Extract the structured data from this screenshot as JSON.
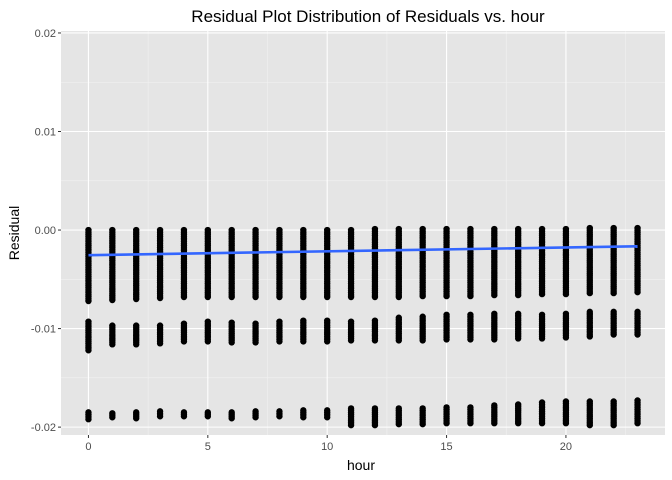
{
  "chart_data": {
    "type": "scatter",
    "title": "Residual Plot Distribution of Residuals vs. hour",
    "xlabel": "hour",
    "ylabel": "Residual",
    "xlim": [
      -1.15,
      24.15
    ],
    "ylim": [
      -0.0208,
      0.0202
    ],
    "x_ticks": [
      0,
      5,
      10,
      15,
      20
    ],
    "x_tick_labels": [
      "0",
      "5",
      "10",
      "15",
      "20"
    ],
    "y_ticks": [
      -0.02,
      -0.01,
      0.0,
      0.01,
      0.02
    ],
    "y_tick_labels": [
      "-0.02",
      "-0.01",
      "0.00",
      "0.01",
      "0.02"
    ],
    "grid": true,
    "legend": "none",
    "colors": {
      "panel": "#e5e5e5",
      "grid_major": "#ffffff",
      "grid_minor": "#f2f2f2",
      "point": "#000000",
      "trend": "#3366ff"
    },
    "point_bands": [
      {
        "name": "main",
        "x": [
          0,
          1,
          2,
          3,
          4,
          5,
          6,
          7,
          8,
          9,
          10,
          11,
          12,
          13,
          14,
          15,
          16,
          17,
          18,
          19,
          20,
          21,
          22,
          23
        ],
        "y_low": [
          -0.0072,
          -0.0071,
          -0.007,
          -0.0069,
          -0.0068,
          -0.0068,
          -0.0068,
          -0.0068,
          -0.0068,
          -0.0068,
          -0.0068,
          -0.0068,
          -0.0068,
          -0.0068,
          -0.0067,
          -0.0067,
          -0.0067,
          -0.0066,
          -0.0066,
          -0.0065,
          -0.0065,
          -0.0064,
          -0.0064,
          -0.0063
        ],
        "y_high": [
          0.0,
          0.0,
          0.0,
          0.0,
          0.0,
          0.0,
          0.0,
          0.0,
          0.0,
          0.0,
          0.0,
          0.0,
          0.0001,
          0.0001,
          0.0001,
          0.0001,
          0.0001,
          0.0001,
          0.0001,
          0.0001,
          0.0001,
          0.0002,
          0.0002,
          0.0002
        ]
      },
      {
        "name": "middle",
        "x": [
          0,
          1,
          2,
          3,
          4,
          5,
          6,
          7,
          8,
          9,
          10,
          11,
          12,
          13,
          14,
          15,
          16,
          17,
          18,
          19,
          20,
          21,
          22,
          23
        ],
        "y_low": [
          -0.0122,
          -0.0116,
          -0.0116,
          -0.0115,
          -0.0113,
          -0.0113,
          -0.0114,
          -0.0114,
          -0.0113,
          -0.0113,
          -0.0113,
          -0.0112,
          -0.0112,
          -0.0112,
          -0.0112,
          -0.0111,
          -0.0111,
          -0.0111,
          -0.011,
          -0.011,
          -0.0109,
          -0.0108,
          -0.0106,
          -0.0106
        ],
        "y_high": [
          -0.0093,
          -0.0097,
          -0.0097,
          -0.0097,
          -0.0095,
          -0.0093,
          -0.0094,
          -0.0095,
          -0.0093,
          -0.0092,
          -0.0092,
          -0.0093,
          -0.0092,
          -0.0089,
          -0.0088,
          -0.0086,
          -0.0086,
          -0.0085,
          -0.0085,
          -0.0086,
          -0.0085,
          -0.0083,
          -0.0083,
          -0.0083
        ]
      },
      {
        "name": "bottom",
        "x": [
          0,
          1,
          2,
          3,
          4,
          5,
          6,
          7,
          8,
          9,
          10,
          11,
          12,
          13,
          14,
          15,
          16,
          17,
          18,
          19,
          20,
          21,
          22,
          23
        ],
        "y_low": [
          -0.0192,
          -0.019,
          -0.0191,
          -0.0189,
          -0.0189,
          -0.0189,
          -0.0191,
          -0.019,
          -0.0189,
          -0.019,
          -0.019,
          -0.0198,
          -0.0198,
          -0.0197,
          -0.0197,
          -0.0196,
          -0.0196,
          -0.0196,
          -0.0196,
          -0.0196,
          -0.0196,
          -0.0198,
          -0.0198,
          -0.0196
        ],
        "y_high": [
          -0.0185,
          -0.0186,
          -0.0185,
          -0.0184,
          -0.0185,
          -0.0185,
          -0.0185,
          -0.0184,
          -0.0184,
          -0.0183,
          -0.0183,
          -0.0181,
          -0.0181,
          -0.0181,
          -0.0181,
          -0.018,
          -0.018,
          -0.0178,
          -0.0177,
          -0.0175,
          -0.0174,
          -0.0174,
          -0.0174,
          -0.0173
        ]
      }
    ],
    "trend": {
      "x": [
        0,
        23
      ],
      "y": [
        -0.00255,
        -0.00165
      ]
    }
  }
}
